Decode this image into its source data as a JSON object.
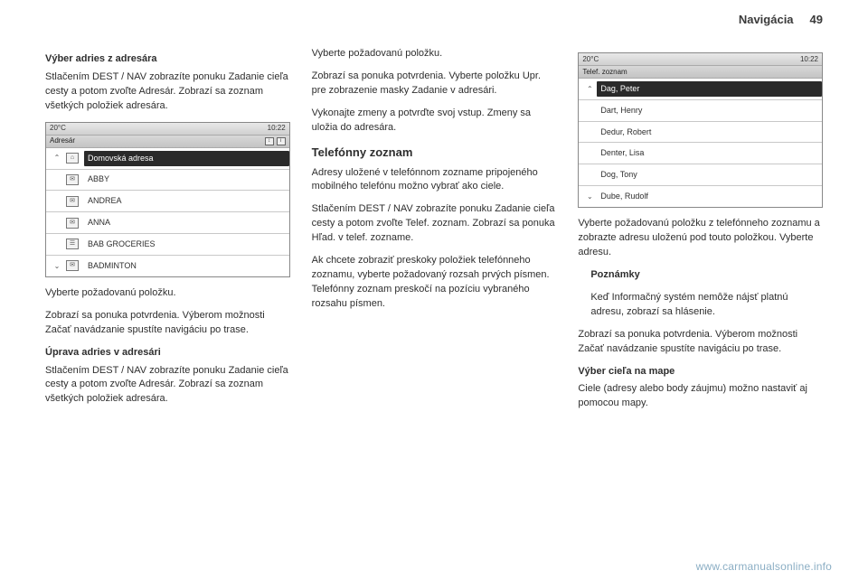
{
  "header": {
    "section": "Navigácia",
    "page": "49"
  },
  "col1": {
    "h1": "Výber adries z adresára",
    "p1": "Stlačením DEST / NAV zobrazíte ponuku Zadanie cieľa cesty a potom zvoľte Adresár. Zobrazí sa zoznam všetkých položiek adresára.",
    "device": {
      "temp": "20°C",
      "clock": "10:22",
      "title": "Adresár",
      "rows": [
        {
          "arrow": "⌃",
          "icon": "⌂",
          "label": "Domovská adresa",
          "highlight": true
        },
        {
          "arrow": "",
          "icon": "✉",
          "label": "ABBY"
        },
        {
          "arrow": "",
          "icon": "✉",
          "label": "ANDREA"
        },
        {
          "arrow": "",
          "icon": "✉",
          "label": "ANNA"
        },
        {
          "arrow": "",
          "icon": "☰",
          "label": "BAB GROCERIES"
        },
        {
          "arrow": "⌄",
          "icon": "✉",
          "label": "BADMINTON"
        }
      ]
    },
    "p2": "Vyberte požadovanú položku.",
    "p3": "Zobrazí sa ponuka potvrdenia. Výberom možnosti Začať navádzanie spustíte navigáciu po trase.",
    "h2": "Úprava adries v adresári",
    "p4": "Stlačením DEST / NAV zobrazíte ponuku Zadanie cieľa cesty a potom zvoľte Adresár. Zobrazí sa zoznam všetkých položiek adresára."
  },
  "col2": {
    "p1": "Vyberte požadovanú položku.",
    "p2": "Zobrazí sa ponuka potvrdenia. Vyberte položku Upr. pre zobrazenie masky Zadanie v adresári.",
    "p3": "Vykonajte zmeny a potvrďte svoj vstup. Zmeny sa uložia do adresára.",
    "h1": "Telefónny zoznam",
    "p4": "Adresy uložené v telefónnom zozname pripojeného mobilného telefónu možno vybrať ako ciele.",
    "p5": "Stlačením DEST / NAV zobrazíte ponuku Zadanie cieľa cesty a potom zvoľte Telef. zoznam. Zobrazí sa ponuka Hľad. v telef. zozname.",
    "p6": "Ak chcete zobraziť preskoky položiek telefónneho zoznamu, vyberte požadovaný rozsah prvých písmen. Telefónny zoznam preskočí na pozíciu vybraného rozsahu písmen."
  },
  "col3": {
    "device": {
      "temp": "20°C",
      "clock": "10:22",
      "title": "Telef. zoznam",
      "rows": [
        {
          "arrow": "⌃",
          "label": "Dag, Peter",
          "highlight": true
        },
        {
          "arrow": "",
          "label": "Dart, Henry"
        },
        {
          "arrow": "",
          "label": "Dedur, Robert"
        },
        {
          "arrow": "",
          "label": "Denter, Lisa"
        },
        {
          "arrow": "",
          "label": "Dog, Tony"
        },
        {
          "arrow": "⌄",
          "label": "Dube, Rudolf"
        }
      ]
    },
    "p1": "Vyberte požadovanú položku z telefónneho zoznamu a zobrazte adresu uloženú pod touto položkou. Vyberte adresu.",
    "note_head": "Poznámky",
    "note_body": "Keď Informačný systém nemôže nájsť platnú adresu, zobrazí sa hlásenie.",
    "p2": "Zobrazí sa ponuka potvrdenia. Výberom možnosti Začať navádzanie spustíte navigáciu po trase.",
    "h2": "Výber cieľa na mape",
    "p3": "Ciele (adresy alebo body záujmu) možno nastaviť aj pomocou mapy."
  },
  "watermark": "www.carmanualsonline.info"
}
